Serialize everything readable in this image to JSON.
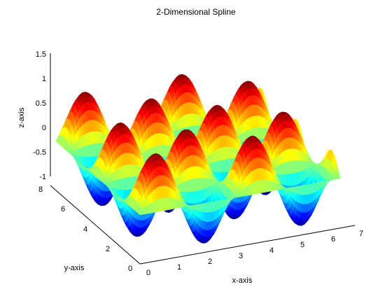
{
  "chart_data": {
    "type": "surface",
    "title": "2-Dimensional Spline",
    "xlabel": "x-axis",
    "ylabel": "y-axis",
    "zlabel": "z-axis",
    "xlim": [
      0,
      7
    ],
    "ylim": [
      0,
      8
    ],
    "zlim": [
      -1,
      1.5
    ],
    "x_ticks": [
      "0",
      "1",
      "2",
      "3",
      "4",
      "5",
      "6",
      "7"
    ],
    "y_ticks": [
      "0",
      "2",
      "4",
      "6",
      "8"
    ],
    "z_ticks": [
      "-1",
      "-0.5",
      "0",
      "0.5",
      "1",
      "1.5"
    ],
    "surface": {
      "function": "z = sin(2x)·sin(2y)",
      "x_range": [
        0,
        6.5
      ],
      "y_range": [
        0,
        7.5
      ],
      "z_range": [
        -1,
        1
      ]
    },
    "colormap": "jet",
    "grid": false
  }
}
